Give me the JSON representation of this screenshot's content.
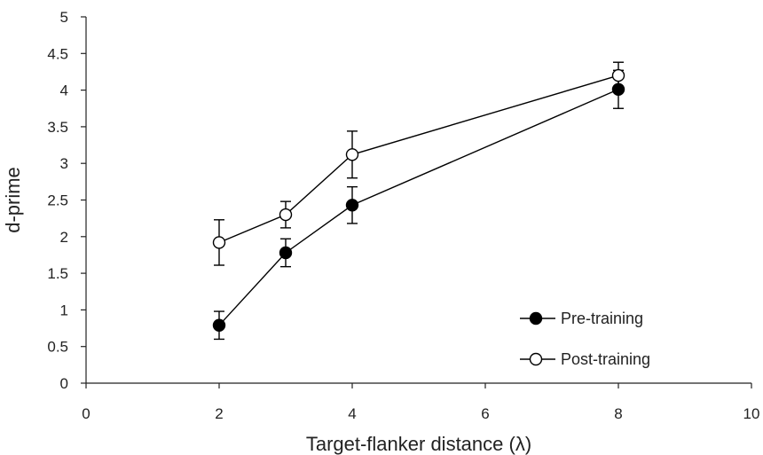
{
  "chart_data": {
    "type": "line",
    "xlabel": "Target-flanker distance (λ)",
    "ylabel": "d-prime",
    "xlim": [
      0,
      10
    ],
    "ylim": [
      0,
      5
    ],
    "x_ticks": [
      0,
      2,
      4,
      6,
      8,
      10
    ],
    "y_ticks": [
      0,
      0.5,
      1,
      1.5,
      2,
      2.5,
      3,
      3.5,
      4,
      4.5,
      5
    ],
    "grid": false,
    "legend_position": "bottom-right",
    "series": [
      {
        "name": "Pre-training",
        "marker": "filled-circle",
        "color": "#000000",
        "fill": "#000000",
        "x": [
          2,
          3,
          4,
          8
        ],
        "y": [
          0.79,
          1.78,
          2.43,
          4.01
        ],
        "error": [
          0.19,
          0.19,
          0.25,
          0.26
        ]
      },
      {
        "name": "Post-training",
        "marker": "open-circle",
        "color": "#000000",
        "fill": "#ffffff",
        "x": [
          2,
          3,
          4,
          8
        ],
        "y": [
          1.92,
          2.3,
          3.12,
          4.2
        ],
        "error": [
          0.31,
          0.18,
          0.32,
          0.18
        ]
      }
    ]
  }
}
